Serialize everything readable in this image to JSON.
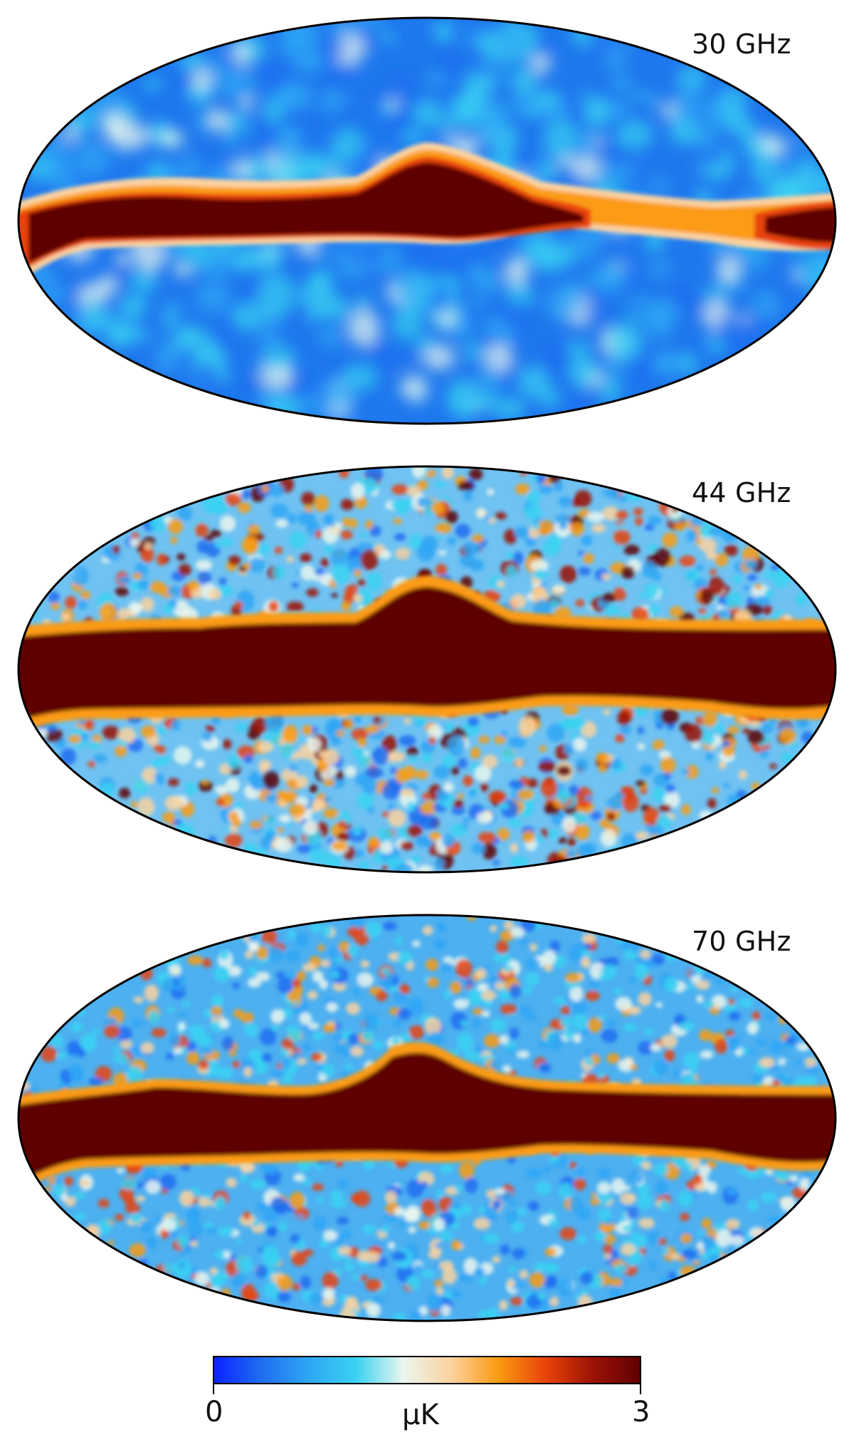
{
  "maps": [
    {
      "frequency_label": "30 GHz"
    },
    {
      "frequency_label": "44 GHz"
    },
    {
      "frequency_label": "70 GHz"
    }
  ],
  "colorbar": {
    "min_label": "0",
    "max_label": "3",
    "unit_label": "μK",
    "colors": [
      "#0b22ff",
      "#1e6df0",
      "#2fa6f5",
      "#39d2f2",
      "#ebf6ee",
      "#fcd2a0",
      "#fb9b12",
      "#e9430a",
      "#9c1205",
      "#5f0000"
    ]
  }
}
